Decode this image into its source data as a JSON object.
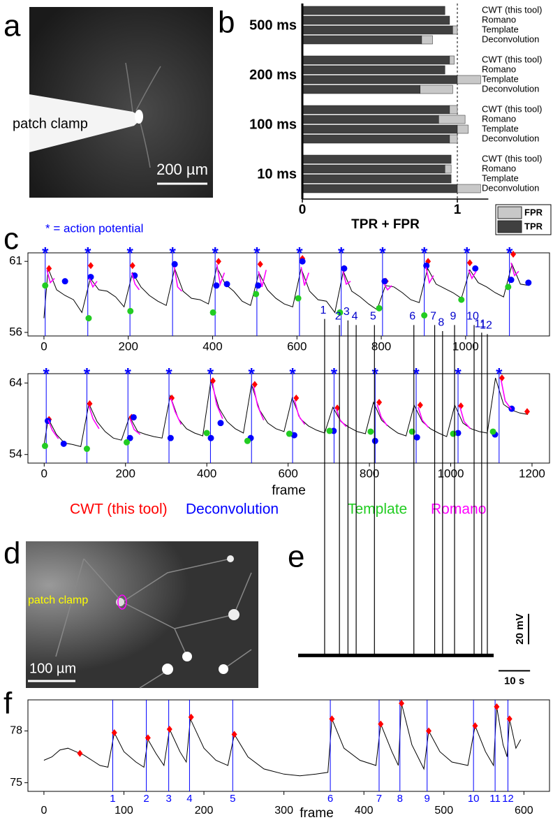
{
  "panel_labels": [
    "a",
    "b",
    "c",
    "d",
    "e",
    "f"
  ],
  "image_a": {
    "label": "patch clamp",
    "scalebar": "200 µm"
  },
  "image_d": {
    "label": "patch clamp",
    "scalebar": "100 µm"
  },
  "chart_data": [
    {
      "type": "hbar_stacked",
      "groups": [
        "500 ms",
        "200 ms",
        "100 ms",
        "10 ms"
      ],
      "categories": [
        "CWT (this tool)",
        "Romano",
        "Template",
        "Deconvolution"
      ],
      "series": [
        {
          "name": "TPR",
          "color": "#404040",
          "values": [
            [
              0.92,
              0.95,
              0.97,
              0.77
            ],
            [
              0.95,
              0.92,
              1.0,
              0.76
            ],
            [
              0.95,
              0.88,
              1.0,
              0.95
            ],
            [
              0.96,
              0.92,
              0.96,
              1.0
            ]
          ]
        },
        {
          "name": "FPR",
          "color": "#c8c8c8",
          "values": [
            [
              0,
              0,
              0.03,
              0.07
            ],
            [
              0.03,
              0,
              0.15,
              0.21
            ],
            [
              0.05,
              0.17,
              0.07,
              0.05
            ],
            [
              0,
              0.04,
              0,
              0.15
            ]
          ]
        }
      ],
      "xlim": [
        0,
        1.2
      ],
      "xticks": [
        0,
        1
      ],
      "xlabel": "TPR + FPR",
      "reference_line": 1,
      "legend": "lower right"
    },
    {
      "type": "line",
      "annotation": "* = action potential",
      "color": "#000000",
      "x": [
        0,
        10,
        30,
        50,
        70,
        90,
        110,
        130,
        150,
        170,
        190,
        210,
        230,
        250,
        270,
        290,
        310,
        330,
        350,
        370,
        390,
        410,
        430,
        450,
        470,
        490,
        510,
        530,
        550,
        570,
        590,
        610,
        630,
        650,
        670,
        690,
        710,
        730,
        750,
        770,
        790,
        810,
        830,
        850,
        870,
        890,
        910,
        930,
        950,
        970,
        990,
        1010,
        1030,
        1050,
        1070,
        1090,
        1110,
        1130,
        1150
      ],
      "values": [
        57.0,
        60.5,
        59.0,
        58.6,
        58.3,
        57.4,
        59.8,
        59.0,
        58.9,
        58.5,
        57.8,
        60.2,
        59.2,
        58.6,
        58.2,
        57.9,
        60.5,
        58.9,
        58.4,
        58.3,
        58.0,
        60.6,
        59.4,
        58.9,
        58.2,
        57.9,
        60.2,
        59.0,
        58.4,
        58.0,
        57.8,
        60.5,
        58.9,
        58.3,
        58.2,
        57.4,
        60.3,
        58.9,
        58.5,
        58.0,
        57.6,
        59.3,
        59.2,
        58.8,
        58.3,
        58.1,
        60.5,
        59.4,
        59.1,
        58.8,
        58.4,
        60.4,
        59.5,
        59.2,
        58.8,
        58.5,
        60.8,
        59.4,
        59.3
      ],
      "xlim": [
        -38,
        1199
      ],
      "ylim": [
        55.75,
        61.6
      ],
      "xticks": [
        0,
        200,
        400,
        600,
        800,
        1000
      ],
      "yticks": [
        56,
        61
      ],
      "events": {
        "x": [
          3,
          104,
          204,
          305,
          406,
          505,
          606,
          705,
          803,
          902,
          1003,
          1104
        ],
        "marker": "*",
        "color": "#0000ff"
      },
      "detections": [
        {
          "color": "#ff0000",
          "shape": "diamond",
          "x": [
            12,
            111,
            210,
            310,
            414,
            513,
            613,
            712,
            811,
            911,
            1010,
            1113
          ],
          "values": [
            60.5,
            60.7,
            60.7,
            60.8,
            61.0,
            60.8,
            61.2,
            60.5,
            59.6,
            61.0,
            60.9,
            61.5
          ]
        },
        {
          "color": "#0000ff",
          "shape": "circle",
          "x": [
            50,
            111,
            215,
            310,
            409,
            434,
            508,
            613,
            712,
            808,
            907,
            1023,
            1108,
            1149
          ],
          "values": [
            59.6,
            59.9,
            60.0,
            60.8,
            59.3,
            59.4,
            59.3,
            61.0,
            60.5,
            59.6,
            60.7,
            60.5,
            59.7,
            59.5
          ]
        },
        {
          "color": "#22cc22",
          "shape": "circle",
          "x": [
            3,
            106,
            205,
            401,
            503,
            603,
            702,
            795,
            902,
            990,
            1101
          ],
          "values": [
            59.3,
            57.0,
            57.5,
            57.4,
            58.7,
            58.4,
            57.4,
            57.7,
            57.2,
            58.3,
            59.2
          ]
        },
        {
          "color": "#ff00ff",
          "shape": "line",
          "x": [
            7,
            15,
            25,
            33,
            108,
            116,
            126,
            134,
            208,
            216,
            226,
            234,
            309,
            317,
            327,
            335,
            410,
            418,
            428,
            436,
            509,
            517,
            527,
            535,
            610,
            618,
            628,
            636,
            709,
            717,
            727,
            735,
            807,
            815,
            825,
            833,
            906,
            914,
            924,
            932,
            1007,
            1015,
            1025,
            1033,
            1108,
            1116,
            1126
          ],
          "values": [
            60.4,
            59.5,
            59.8,
            null,
            59.8,
            59.2,
            59.6,
            null,
            60.2,
            59.4,
            59.0,
            null,
            60.6,
            59.2,
            58.9,
            null,
            60.8,
            59.4,
            60.2,
            null,
            60.3,
            59.2,
            60.4,
            null,
            60.6,
            59.3,
            60.2,
            null,
            60.3,
            59.4,
            59.6,
            null,
            59.4,
            59.0,
            59.3,
            null,
            60.6,
            59.5,
            60.0,
            null,
            60.4,
            59.8,
            60.3,
            null,
            60.9,
            60.0,
            60.3
          ]
        }
      ]
    },
    {
      "type": "line",
      "xlabel": "frame",
      "color": "#000000",
      "x": [
        0,
        10,
        30,
        50,
        70,
        90,
        110,
        130,
        150,
        170,
        190,
        210,
        230,
        250,
        270,
        290,
        310,
        330,
        350,
        370,
        390,
        410,
        430,
        450,
        470,
        490,
        510,
        530,
        550,
        570,
        590,
        610,
        630,
        650,
        670,
        690,
        710,
        730,
        750,
        770,
        790,
        810,
        830,
        850,
        870,
        890,
        910,
        930,
        950,
        970,
        990,
        1010,
        1030,
        1050,
        1070,
        1090,
        1110,
        1130,
        1150,
        1170,
        1190
      ],
      "values": [
        55.5,
        59.0,
        56.8,
        55.6,
        55.4,
        55.1,
        61.1,
        58.6,
        57.2,
        56.3,
        56.0,
        59.3,
        57.2,
        56.8,
        56.5,
        56.3,
        62.2,
        59.0,
        57.6,
        57.0,
        56.6,
        64.3,
        60.5,
        58.6,
        57.6,
        57.0,
        63.8,
        60.2,
        58.4,
        57.6,
        57.2,
        61.9,
        59.0,
        58.0,
        57.4,
        57.0,
        60.6,
        58.6,
        57.8,
        57.2,
        56.9,
        61.3,
        58.8,
        57.8,
        57.0,
        56.6,
        60.9,
        58.6,
        57.6,
        57.0,
        56.5,
        60.9,
        58.4,
        57.6,
        57.2,
        57.0,
        64.7,
        61.0,
        60.2,
        59.8,
        59.6
      ],
      "xlim": [
        -40,
        1243
      ],
      "ylim": [
        52.8,
        65.3
      ],
      "xticks": [
        0,
        200,
        400,
        600,
        800,
        1000,
        1200
      ],
      "yticks": [
        54,
        64
      ],
      "events": {
        "x": [
          5,
          105,
          206,
          307,
          409,
          510,
          611,
          713,
          814,
          915,
          1018,
          1119
        ],
        "marker": "*",
        "color": "#0000ff"
      },
      "legend": "below",
      "detections": [
        {
          "name": "CWT (this tool)",
          "color": "#ff0000",
          "shape": "diamond",
          "x": [
            12,
            112,
            215,
            314,
            415,
            518,
            620,
            721,
            824,
            925,
            1025,
            1126,
            1188
          ],
          "values": [
            58.9,
            61.1,
            59.2,
            61.9,
            64.3,
            63.8,
            61.9,
            60.5,
            61.3,
            60.9,
            60.8,
            64.7,
            60.0
          ]
        },
        {
          "name": "Deconvolution",
          "color": "#0000ff",
          "shape": "circle",
          "x": [
            9,
            48,
            211,
            220,
            311,
            410,
            434,
            508,
            615,
            712,
            814,
            917,
            1018,
            1109,
            1150
          ],
          "values": [
            58.7,
            55.5,
            56.3,
            59.2,
            56.3,
            56.3,
            58.4,
            56.3,
            56.7,
            57.3,
            55.9,
            56.4,
            57.0,
            56.8,
            60.4
          ]
        },
        {
          "name": "Template",
          "color": "#22cc22",
          "shape": "circle",
          "x": [
            2,
            105,
            203,
            400,
            500,
            603,
            702,
            803,
            905,
            1006,
            1104
          ],
          "values": [
            55.2,
            54.8,
            55.7,
            57.0,
            55.9,
            56.9,
            57.3,
            57.2,
            57.2,
            56.9,
            57.2
          ]
        },
        {
          "name": "Romano",
          "color": "#ff00ff",
          "shape": "line",
          "x": [
            10,
            20,
            35,
            43,
            110,
            120,
            135,
            143,
            211,
            221,
            236,
            244,
            312,
            322,
            337,
            345,
            414,
            424,
            439,
            447,
            515,
            525,
            540,
            548,
            616,
            626,
            641,
            649,
            718,
            728,
            743,
            751,
            819,
            829,
            844,
            852,
            920,
            930,
            945,
            953,
            1023,
            1033,
            1048,
            1056,
            1124,
            1134,
            1149
          ],
          "values": [
            58.8,
            57.4,
            56.2,
            null,
            60.8,
            59.0,
            57.6,
            null,
            59.0,
            57.5,
            56.8,
            null,
            61.8,
            60.0,
            58.2,
            null,
            64.0,
            61.0,
            59.0,
            null,
            63.5,
            60.8,
            58.8,
            null,
            61.6,
            59.4,
            58.2,
            null,
            60.4,
            58.8,
            57.9,
            null,
            61.0,
            59.2,
            58.0,
            null,
            60.6,
            58.8,
            57.8,
            null,
            60.6,
            58.6,
            57.6,
            null,
            64.4,
            61.5,
            60.3
          ]
        }
      ]
    },
    {
      "type": "spikes",
      "color": "#000000",
      "x": [
        8.4,
        13.1,
        15.8,
        18.4,
        24.2,
        36.7,
        43.3,
        45.8,
        49.6,
        55.8,
        58.2,
        60.0
      ],
      "values": [
        221,
        217,
        220,
        217,
        217,
        217,
        217,
        213,
        217,
        217,
        212,
        211
      ],
      "labels": [
        "1",
        "2",
        "3",
        "4",
        "5",
        "6",
        "7",
        "8",
        "9",
        "10",
        "11",
        "12"
      ],
      "label_color": "#0000cc",
      "xlim": [
        0,
        62
      ],
      "ylim": [
        -20,
        230
      ],
      "scalebar_y": {
        "value": 20,
        "label": "20 mV"
      },
      "scalebar_x": {
        "value": 10,
        "label": "10 s"
      }
    },
    {
      "type": "line",
      "xlabel": "frame",
      "color": "#000000",
      "x": [
        0,
        10,
        20,
        30,
        40,
        50,
        60,
        70,
        80,
        88,
        100,
        115,
        125,
        130,
        140,
        150,
        157,
        170,
        178,
        183,
        200,
        215,
        230,
        238,
        255,
        275,
        300,
        320,
        340,
        355,
        360,
        375,
        395,
        415,
        421,
        435,
        443,
        447,
        460,
        475,
        481,
        495,
        510,
        530,
        539,
        552,
        562,
        566,
        574,
        579,
        582,
        590,
        596
      ],
      "values": [
        76.3,
        76.5,
        76.9,
        77.0,
        76.8,
        76.6,
        76.3,
        76.0,
        75.9,
        77.9,
        76.8,
        76.2,
        75.9,
        77.5,
        76.7,
        76.0,
        78.1,
        76.8,
        76.2,
        78.7,
        77.0,
        76.3,
        76.0,
        77.8,
        76.5,
        75.8,
        75.5,
        75.4,
        75.5,
        75.6,
        78.7,
        77.0,
        76.3,
        76.0,
        78.4,
        76.8,
        76.0,
        79.6,
        77.2,
        75.8,
        78.0,
        76.8,
        76.2,
        76.0,
        78.3,
        76.8,
        76.0,
        79.4,
        77.2,
        76.5,
        78.7,
        77.0,
        77.5
      ],
      "xlim": [
        -20,
        632
      ],
      "ylim": [
        74.5,
        79.8
      ],
      "xticks": [
        0,
        100,
        200,
        300,
        400,
        500,
        600
      ],
      "yticks": [
        75,
        78
      ],
      "events": {
        "x": [
          86,
          128,
          156,
          182,
          236,
          358,
          419,
          445,
          479,
          537,
          564,
          580
        ],
        "labels": [
          "1",
          "2",
          "3",
          "4",
          "5",
          "6",
          "7",
          "8",
          "9",
          "10",
          "11",
          "12"
        ],
        "color": "#0000ff"
      },
      "detections": [
        {
          "color": "#ff0000",
          "shape": "diamond",
          "x": [
            45,
            88,
            130,
            157,
            184,
            238,
            360,
            421,
            447,
            481,
            539,
            566,
            582
          ],
          "values": [
            76.7,
            77.9,
            77.6,
            78.1,
            78.8,
            77.8,
            78.7,
            78.4,
            79.6,
            78.0,
            78.3,
            79.4,
            78.7
          ]
        }
      ]
    }
  ]
}
